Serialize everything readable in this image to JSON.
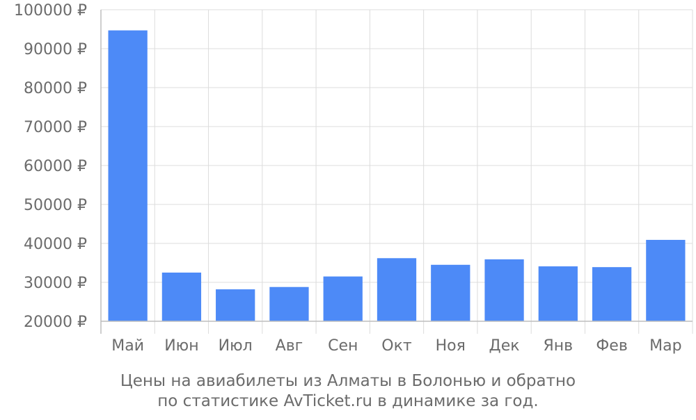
{
  "chart_data": {
    "type": "bar",
    "categories": [
      "Май",
      "Июн",
      "Июл",
      "Авг",
      "Сен",
      "Окт",
      "Ноя",
      "Дек",
      "Янв",
      "Фев",
      "Мар"
    ],
    "series": [
      {
        "values": [
          94700,
          32500,
          28200,
          28800,
          31500,
          36200,
          34500,
          35900,
          34100,
          33900,
          40900
        ]
      }
    ],
    "ylim": [
      20000,
      100000
    ],
    "yticks": [
      20000,
      30000,
      40000,
      50000,
      60000,
      70000,
      80000,
      90000,
      100000
    ],
    "ytick_suffix": " ₽",
    "grid": true,
    "bar_color": "#4d8af7",
    "grid_color": "#dcdcdc",
    "text_color": "#6b6b6b",
    "title_lines": [
      "Цены на авиабилеты из Алматы в Болонью и обратно",
      "по статистике AvTicket.ru в динамике за год."
    ]
  }
}
